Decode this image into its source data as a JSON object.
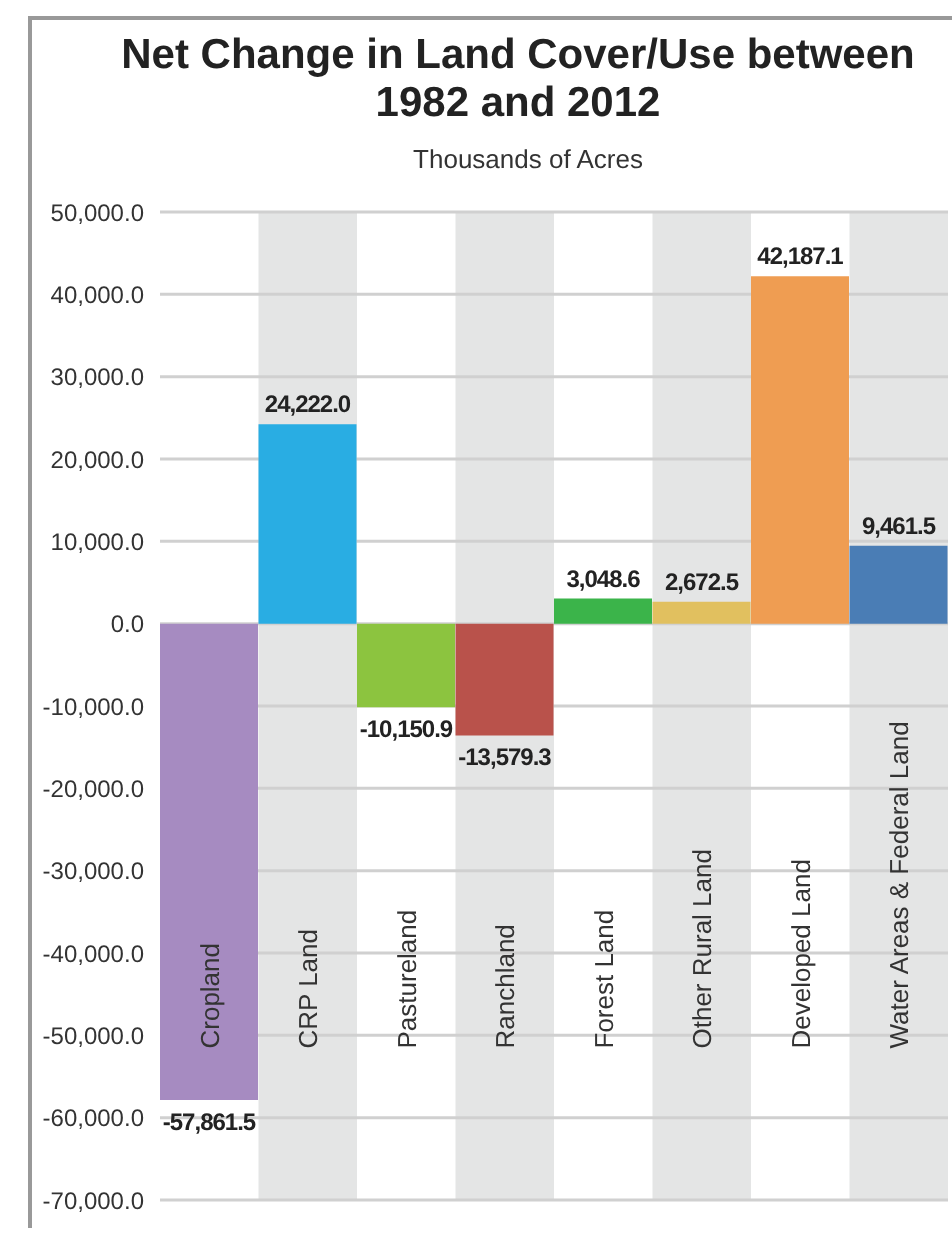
{
  "chart_data": {
    "type": "bar",
    "title": "Net Change in Land Cover/Use between 1982 and 2012",
    "subtitle": "Thousands of Acres",
    "categories": [
      "Cropland",
      "CRP Land",
      "Pastureland",
      "Ranchland",
      "Forest Land",
      "Other Rural Land",
      "Developed Land",
      "Water Areas & Federal Land"
    ],
    "values": [
      -57861.5,
      24222.0,
      -10150.9,
      -13579.3,
      3048.6,
      2672.5,
      42187.1,
      9461.5
    ],
    "colors": [
      "#a68bc1",
      "#29ade3",
      "#8cc43f",
      "#b9524b",
      "#3bb44a",
      "#e1c05f",
      "#ef9d52",
      "#4a7db5"
    ],
    "ylim": [
      -70000,
      50000
    ],
    "yticks": [
      {
        "value": 50000,
        "label": "50,000.0"
      },
      {
        "value": 40000,
        "label": "40,000.0"
      },
      {
        "value": 30000,
        "label": "30,000.0"
      },
      {
        "value": 20000,
        "label": "20,000.0"
      },
      {
        "value": 10000,
        "label": "10,000.0"
      },
      {
        "value": 0,
        "label": "0.0"
      },
      {
        "value": -10000,
        "label": "-10,000.0"
      },
      {
        "value": -20000,
        "label": "-20,000.0"
      },
      {
        "value": -30000,
        "label": "-30,000.0"
      },
      {
        "value": -40000,
        "label": "-40,000.0"
      },
      {
        "value": -50000,
        "label": "-50,000.0"
      },
      {
        "value": -60000,
        "label": "-60,000.0"
      },
      {
        "value": -70000,
        "label": "-70,000.0"
      }
    ],
    "value_labels": [
      "-57,861.5",
      "24,222.0",
      "-10,150.9",
      "-13,579.3",
      "3,048.6",
      "2,672.5",
      "42,187.1",
      "9,461.5"
    ],
    "grid": "y"
  }
}
